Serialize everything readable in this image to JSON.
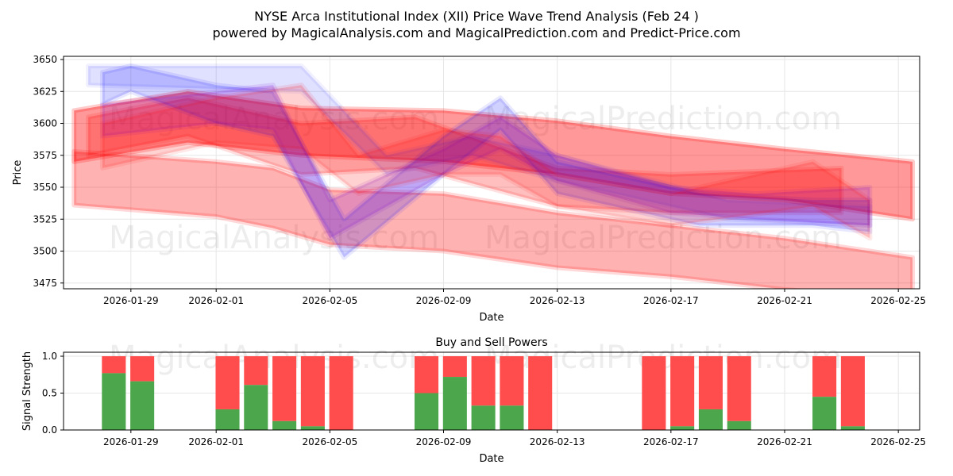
{
  "title": "NYSE Arca Institutional Index (XII) Price Wave Trend Analysis (Feb 24 )",
  "subtitle": "powered by MagicalAnalysis.com and MagicalPrediction.com and Predict-Price.com",
  "watermarks": [
    "MagicalAnalysis.com",
    "MagicalPrediction.com"
  ],
  "colors": {
    "red": "#ff0000",
    "blue": "#0000ff",
    "buy": "#4ca64c",
    "sell": "#ff4c4c"
  },
  "chart_data": [
    {
      "type": "area",
      "title": "",
      "xlabel": "Date",
      "ylabel": "Price",
      "x_origin": "2026-01-26",
      "xlim_days": [
        0.63,
        30.75
      ],
      "ylim": [
        3470.5,
        3652.5
      ],
      "yticks": [
        3475,
        3500,
        3525,
        3550,
        3575,
        3600,
        3625,
        3650
      ],
      "xticks": [
        {
          "day": 3,
          "label": "2026-01-29"
        },
        {
          "day": 6,
          "label": "2026-02-01"
        },
        {
          "day": 10,
          "label": "2026-02-05"
        },
        {
          "day": 14,
          "label": "2026-02-09"
        },
        {
          "day": 18,
          "label": "2026-02-13"
        },
        {
          "day": 22,
          "label": "2026-02-17"
        },
        {
          "day": 26,
          "label": "2026-02-21"
        },
        {
          "day": 30,
          "label": "2026-02-25"
        }
      ],
      "grid": true,
      "bands": [
        {
          "color": "red",
          "opacity": 0.3,
          "points": [
            [
              1,
              3536,
              3578
            ],
            [
              6,
              3527,
              3570
            ],
            [
              8,
              3518,
              3565
            ],
            [
              10,
              3505,
              3548
            ],
            [
              14,
              3500,
              3545
            ],
            [
              18,
              3487,
              3530
            ],
            [
              22,
              3480,
              3520
            ],
            [
              26,
              3470,
              3510
            ],
            [
              30.5,
              3462,
              3495
            ]
          ]
        },
        {
          "color": "red",
          "opacity": 0.4,
          "points": [
            [
              1,
              3570,
              3610
            ],
            [
              5,
              3585,
              3625
            ],
            [
              9,
              3575,
              3612
            ],
            [
              14,
              3570,
              3610
            ],
            [
              18,
              3560,
              3602
            ],
            [
              22,
              3545,
              3590
            ],
            [
              26,
              3540,
              3580
            ],
            [
              30.5,
              3525,
              3570
            ]
          ]
        },
        {
          "color": "red",
          "opacity": 0.25,
          "points": [
            [
              1.5,
              3575,
              3605
            ],
            [
              5,
              3590,
              3620
            ],
            [
              9,
              3560,
              3600
            ],
            [
              13,
              3565,
              3605
            ],
            [
              18,
              3535,
              3565
            ],
            [
              22,
              3530,
              3560
            ],
            [
              28,
              3530,
              3565
            ]
          ]
        },
        {
          "color": "blue",
          "opacity": 0.12,
          "points": [
            [
              1.5,
              3630,
              3645
            ],
            [
              9,
              3625,
              3645
            ],
            [
              12,
              3560,
              3575
            ],
            [
              15,
              3575,
              3590
            ],
            [
              18,
              3555,
              3575
            ],
            [
              24,
              3525,
              3540
            ],
            [
              29,
              3520,
              3535
            ]
          ]
        },
        {
          "color": "blue",
          "opacity": 0.18,
          "points": [
            [
              2,
              3615,
              3640
            ],
            [
              3,
              3625,
              3645
            ],
            [
              6,
              3600,
              3630
            ],
            [
              8,
              3590,
              3625
            ],
            [
              10.5,
              3495,
              3525
            ],
            [
              14,
              3560,
              3590
            ],
            [
              16,
              3595,
              3620
            ],
            [
              18,
              3545,
              3570
            ],
            [
              23,
              3520,
              3545
            ],
            [
              27,
              3520,
              3540
            ],
            [
              29,
              3515,
              3540
            ]
          ]
        },
        {
          "color": "purple",
          "opacity": 0.2,
          "points": [
            [
              2,
              3590,
              3615
            ],
            [
              6,
              3600,
              3625
            ],
            [
              8,
              3595,
              3630
            ],
            [
              10,
              3510,
              3540
            ],
            [
              14,
              3560,
              3580
            ],
            [
              16,
              3580,
              3605
            ],
            [
              18,
              3555,
              3575
            ],
            [
              22,
              3530,
              3550
            ],
            [
              25,
              3525,
              3545
            ],
            [
              29,
              3520,
              3550
            ]
          ]
        },
        {
          "color": "red",
          "opacity": 0.18,
          "points": [
            [
              2,
              3565,
              3600
            ],
            [
              6,
              3585,
              3620
            ],
            [
              9,
              3580,
              3630
            ],
            [
              11,
              3545,
              3575
            ],
            [
              14,
              3560,
              3595
            ],
            [
              16,
              3560,
              3590
            ],
            [
              18,
              3535,
              3560
            ],
            [
              22,
              3520,
              3545
            ],
            [
              27,
              3535,
              3570
            ],
            [
              29,
              3510,
              3540
            ]
          ]
        }
      ]
    },
    {
      "type": "bar",
      "title": "Buy and Sell Powers",
      "xlabel": "Date",
      "ylabel": "Signal Strength",
      "ylim": [
        0,
        1.054
      ],
      "yticks": [
        {
          "v": 0,
          "label": "0.0"
        },
        {
          "v": 0.5,
          "label": "0.5"
        },
        {
          "v": 1,
          "label": "1.0"
        }
      ],
      "dates_days": [
        3,
        4,
        7,
        8,
        9,
        10,
        11,
        14,
        15,
        16,
        17,
        18,
        22,
        23,
        24,
        25,
        28,
        29
      ],
      "buy": [
        0.77,
        0.66,
        0.28,
        0.61,
        0.12,
        0.05,
        0,
        0.5,
        0.72,
        0.33,
        0.33,
        0,
        0,
        0.05,
        0.28,
        0.12,
        0.45,
        0.05
      ],
      "sell_total": 1.0
    }
  ]
}
